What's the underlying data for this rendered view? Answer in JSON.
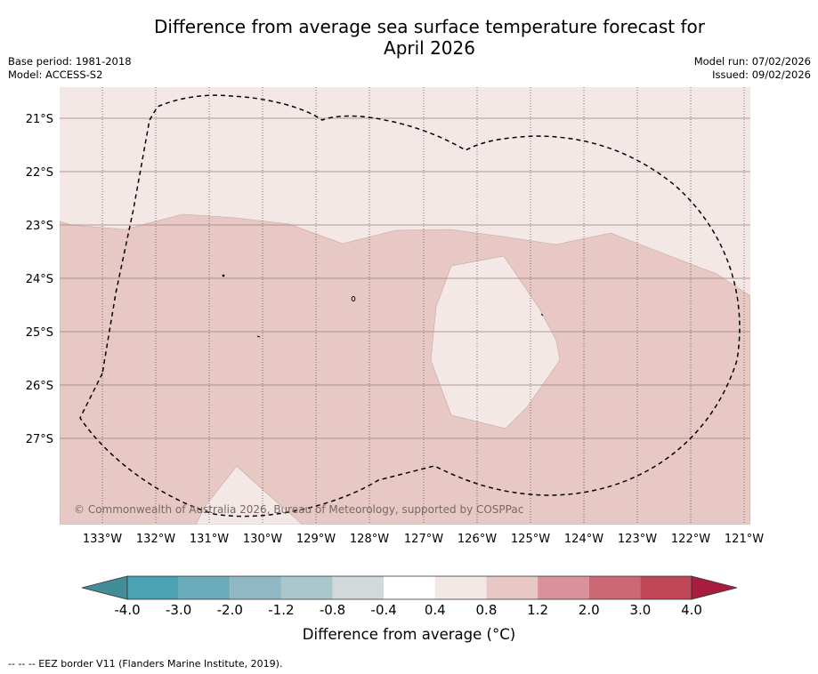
{
  "title_line1": "Difference from average sea surface temperature forecast for",
  "title_line2": "April 2026",
  "base_period": "Base period: 1981-2018",
  "model": "Model: ACCESS-S2",
  "model_run": "Model run: 07/02/2026",
  "issued": "Issued: 09/02/2026",
  "copyright": "© Commonwealth of Australia 2026, Bureau of Meteorology, supported by COSPPac",
  "map": {
    "lat_labels": [
      "21°S",
      "22°S",
      "23°S",
      "24°S",
      "25°S",
      "26°S",
      "27°S"
    ],
    "lon_labels": [
      "133°W",
      "132°W",
      "131°W",
      "130°W",
      "129°W",
      "128°W",
      "127°W",
      "126°W",
      "125°W",
      "124°W",
      "123°W",
      "122°W",
      "121°W"
    ]
  },
  "colorbar": {
    "title": "Difference from average (°C)",
    "ticks": [
      "-4.0",
      "-3.0",
      "-2.0",
      "-1.2",
      "-0.8",
      "-0.4",
      "0.4",
      "0.8",
      "1.2",
      "2.0",
      "3.0",
      "4.0"
    ],
    "colors": [
      "#438d99",
      "#4aa2b2",
      "#6badbb",
      "#8fb8c4",
      "#aac7cc",
      "#d3d8db",
      "#ffffff",
      "#f4e8e7",
      "#e7c8c4",
      "#d9929a",
      "#cc6873",
      "#c04555",
      "#a81c3e"
    ]
  },
  "footnote": "--  --  -- EEZ border V11 (Flanders Marine Institute, 2019)."
}
